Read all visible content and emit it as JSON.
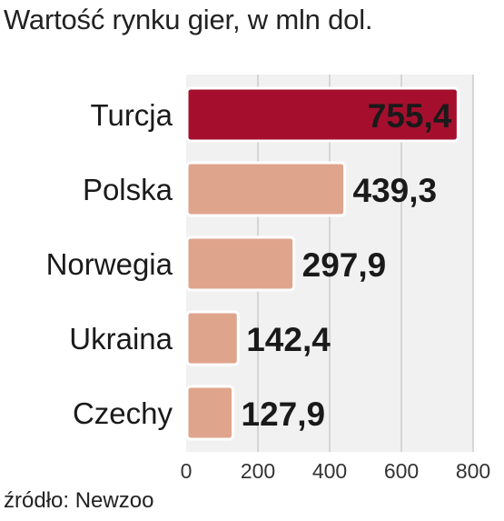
{
  "chart_data": {
    "type": "bar",
    "orientation": "horizontal",
    "title": "Wartość rynku gier, w mln dol.",
    "categories": [
      "Turcja",
      "Polska",
      "Norwegia",
      "Ukraina",
      "Czechy"
    ],
    "values": [
      755.4,
      439.3,
      297.9,
      142.4,
      127.9
    ],
    "value_labels": [
      "755,4",
      "439,3",
      "297,9",
      "142,4",
      "127,9"
    ],
    "highlight_index": 0,
    "xlim": [
      0,
      800
    ],
    "xticks": [
      0,
      200,
      400,
      600,
      800
    ],
    "xtick_labels": [
      "0",
      "200",
      "400",
      "600",
      "800"
    ],
    "grid": true,
    "colors": {
      "highlight": "#a50f2d",
      "bar": "#dfa48c",
      "bar_border": "#ffffff",
      "panel": "#f1f1f1",
      "grid": "#cccccc"
    }
  },
  "source": "źródło: Newzoo"
}
